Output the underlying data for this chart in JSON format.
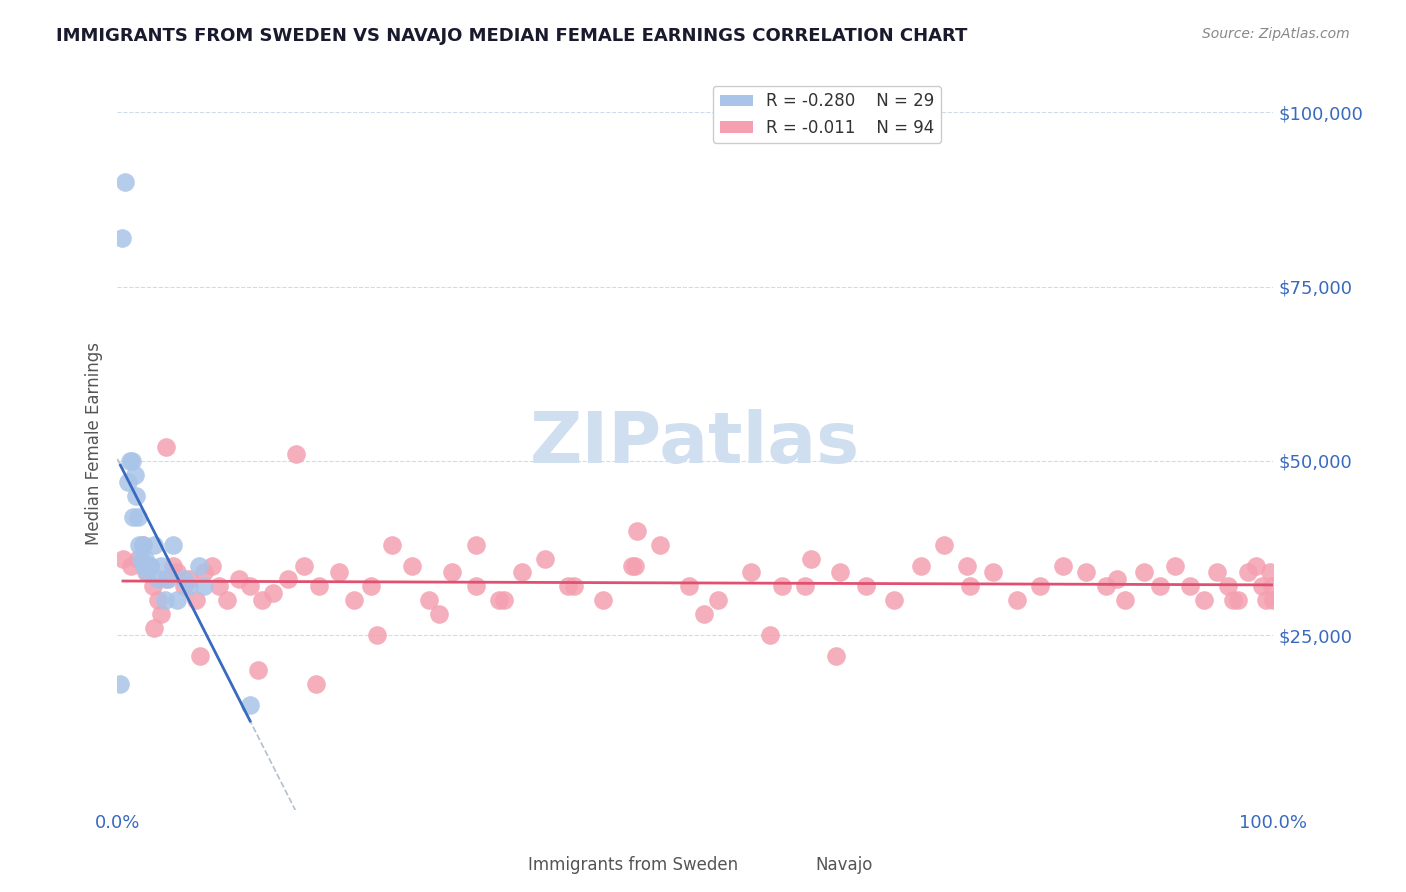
{
  "title": "IMMIGRANTS FROM SWEDEN VS NAVAJO MEDIAN FEMALE EARNINGS CORRELATION CHART",
  "source": "Source: ZipAtlas.com",
  "xlabel": "",
  "ylabel": "Median Female Earnings",
  "xlim": [
    0,
    1.0
  ],
  "ylim": [
    0,
    105000
  ],
  "yticks": [
    0,
    25000,
    50000,
    75000,
    100000
  ],
  "xticks": [
    0.0,
    0.1,
    0.2,
    0.3,
    0.4,
    0.5,
    0.6,
    0.7,
    0.8,
    0.9,
    1.0
  ],
  "xtick_labels": [
    "0.0%",
    "",
    "",
    "",
    "",
    "",
    "",
    "",
    "",
    "",
    "100.0%"
  ],
  "ytick_labels": [
    "",
    "$25,000",
    "$50,000",
    "$75,000",
    "$100,000"
  ],
  "legend_labels": [
    "Immigrants from Sweden",
    "Navajo"
  ],
  "legend_r": [
    -0.28,
    -0.011
  ],
  "legend_n": [
    29,
    94
  ],
  "bg_color": "#ffffff",
  "grid_color": "#c0d4e8",
  "title_color": "#1a1a2e",
  "axis_label_color": "#3a6abf",
  "sweden_color": "#a8c4e8",
  "navajo_color": "#f4a0b0",
  "sweden_line_color": "#3a6abf",
  "navajo_line_color": "#e05070",
  "watermark_color": "#d0dff0",
  "sweden_x": [
    0.0028,
    0.0042,
    0.007,
    0.009,
    0.011,
    0.013,
    0.014,
    0.015,
    0.016,
    0.018,
    0.019,
    0.021,
    0.022,
    0.023,
    0.024,
    0.026,
    0.028,
    0.032,
    0.035,
    0.038,
    0.041,
    0.044,
    0.048,
    0.052,
    0.058,
    0.062,
    0.071,
    0.075,
    0.115
  ],
  "sweden_y": [
    18000,
    82000,
    90000,
    47000,
    50000,
    50000,
    42000,
    48000,
    45000,
    42000,
    38000,
    36000,
    38000,
    35000,
    36000,
    34000,
    35000,
    38000,
    33000,
    35000,
    30000,
    33000,
    38000,
    30000,
    33000,
    32000,
    35000,
    32000,
    15000
  ],
  "navajo_x": [
    0.005,
    0.012,
    0.018,
    0.022,
    0.025,
    0.028,
    0.031,
    0.035,
    0.038,
    0.042,
    0.048,
    0.052,
    0.058,
    0.062,
    0.068,
    0.075,
    0.082,
    0.088,
    0.095,
    0.105,
    0.115,
    0.125,
    0.135,
    0.148,
    0.162,
    0.175,
    0.192,
    0.205,
    0.22,
    0.238,
    0.255,
    0.27,
    0.29,
    0.31,
    0.33,
    0.35,
    0.37,
    0.395,
    0.42,
    0.445,
    0.47,
    0.495,
    0.52,
    0.548,
    0.575,
    0.6,
    0.625,
    0.648,
    0.672,
    0.695,
    0.715,
    0.738,
    0.758,
    0.778,
    0.798,
    0.818,
    0.838,
    0.855,
    0.872,
    0.888,
    0.902,
    0.915,
    0.928,
    0.94,
    0.951,
    0.961,
    0.97,
    0.978,
    0.985,
    0.99,
    0.994,
    0.997,
    0.999,
    1.0,
    0.042,
    0.155,
    0.31,
    0.45,
    0.595,
    0.735,
    0.865,
    0.965,
    0.032,
    0.072,
    0.122,
    0.172,
    0.225,
    0.278,
    0.335,
    0.39,
    0.448,
    0.508,
    0.565,
    0.622
  ],
  "navajo_y": [
    36000,
    35000,
    36000,
    38000,
    34000,
    35000,
    32000,
    30000,
    28000,
    33000,
    35000,
    34000,
    32000,
    33000,
    30000,
    34000,
    35000,
    32000,
    30000,
    33000,
    32000,
    30000,
    31000,
    33000,
    35000,
    32000,
    34000,
    30000,
    32000,
    38000,
    35000,
    30000,
    34000,
    32000,
    30000,
    34000,
    36000,
    32000,
    30000,
    35000,
    38000,
    32000,
    30000,
    34000,
    32000,
    36000,
    34000,
    32000,
    30000,
    35000,
    38000,
    32000,
    34000,
    30000,
    32000,
    35000,
    34000,
    32000,
    30000,
    34000,
    32000,
    35000,
    32000,
    30000,
    34000,
    32000,
    30000,
    34000,
    35000,
    32000,
    30000,
    34000,
    32000,
    30000,
    52000,
    51000,
    38000,
    40000,
    32000,
    35000,
    33000,
    30000,
    26000,
    22000,
    20000,
    18000,
    25000,
    28000,
    30000,
    32000,
    35000,
    28000,
    25000,
    22000
  ]
}
